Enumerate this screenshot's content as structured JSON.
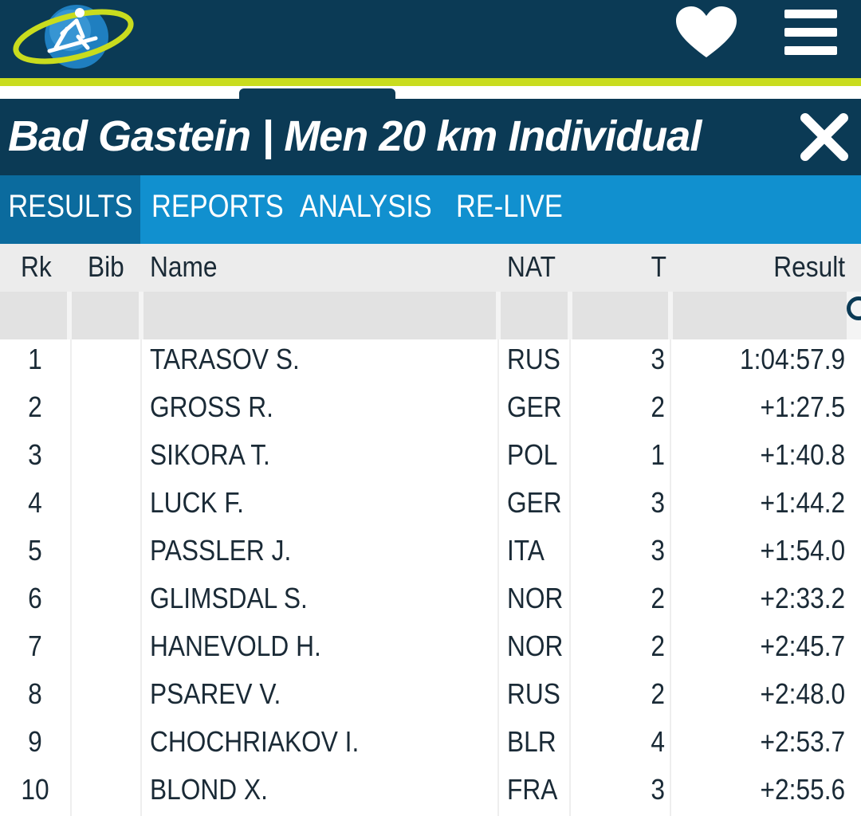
{
  "header": {
    "logo_icon": "biathlon-skier-globe-logo",
    "favorite_icon": "heart-icon",
    "menu_icon": "hamburger-menu-icon"
  },
  "event": {
    "title": "Bad Gastein | Men 20 km Individual",
    "close_icon": "close-icon"
  },
  "tabs": [
    {
      "label": "RESULTS",
      "active": true
    },
    {
      "label": "REPORTS",
      "active": false
    },
    {
      "label": "ANALYSIS",
      "active": false
    },
    {
      "label": "RE-LIVE",
      "active": false
    }
  ],
  "table": {
    "columns": {
      "rk": "Rk",
      "bib": "Bib",
      "name": "Name",
      "nat": "NAT",
      "t": "T",
      "result": "Result"
    },
    "search_icon": "search-icon",
    "rows": [
      {
        "rk": "1",
        "bib": "",
        "name": "TARASOV S.",
        "nat": "RUS",
        "t": "3",
        "result": "1:04:57.9"
      },
      {
        "rk": "2",
        "bib": "",
        "name": "GROSS R.",
        "nat": "GER",
        "t": "2",
        "result": "+1:27.5"
      },
      {
        "rk": "3",
        "bib": "",
        "name": "SIKORA T.",
        "nat": "POL",
        "t": "1",
        "result": "+1:40.8"
      },
      {
        "rk": "4",
        "bib": "",
        "name": "LUCK F.",
        "nat": "GER",
        "t": "3",
        "result": "+1:44.2"
      },
      {
        "rk": "5",
        "bib": "",
        "name": "PASSLER J.",
        "nat": "ITA",
        "t": "3",
        "result": "+1:54.0"
      },
      {
        "rk": "6",
        "bib": "",
        "name": "GLIMSDAL S.",
        "nat": "NOR",
        "t": "2",
        "result": "+2:33.2"
      },
      {
        "rk": "7",
        "bib": "",
        "name": "HANEVOLD H.",
        "nat": "NOR",
        "t": "2",
        "result": "+2:45.7"
      },
      {
        "rk": "8",
        "bib": "",
        "name": "PSAREV V.",
        "nat": "RUS",
        "t": "2",
        "result": "+2:48.0"
      },
      {
        "rk": "9",
        "bib": "",
        "name": "CHOCHRIAKOV I.",
        "nat": "BLR",
        "t": "4",
        "result": "+2:53.7"
      },
      {
        "rk": "10",
        "bib": "",
        "name": "BLOND X.",
        "nat": "FRA",
        "t": "3",
        "result": "+2:55.6"
      }
    ]
  },
  "colors": {
    "navy": "#0b3a55",
    "lime": "#c9dc1e",
    "tab_blue": "#1190cf",
    "tab_active": "#0b6b9e"
  }
}
